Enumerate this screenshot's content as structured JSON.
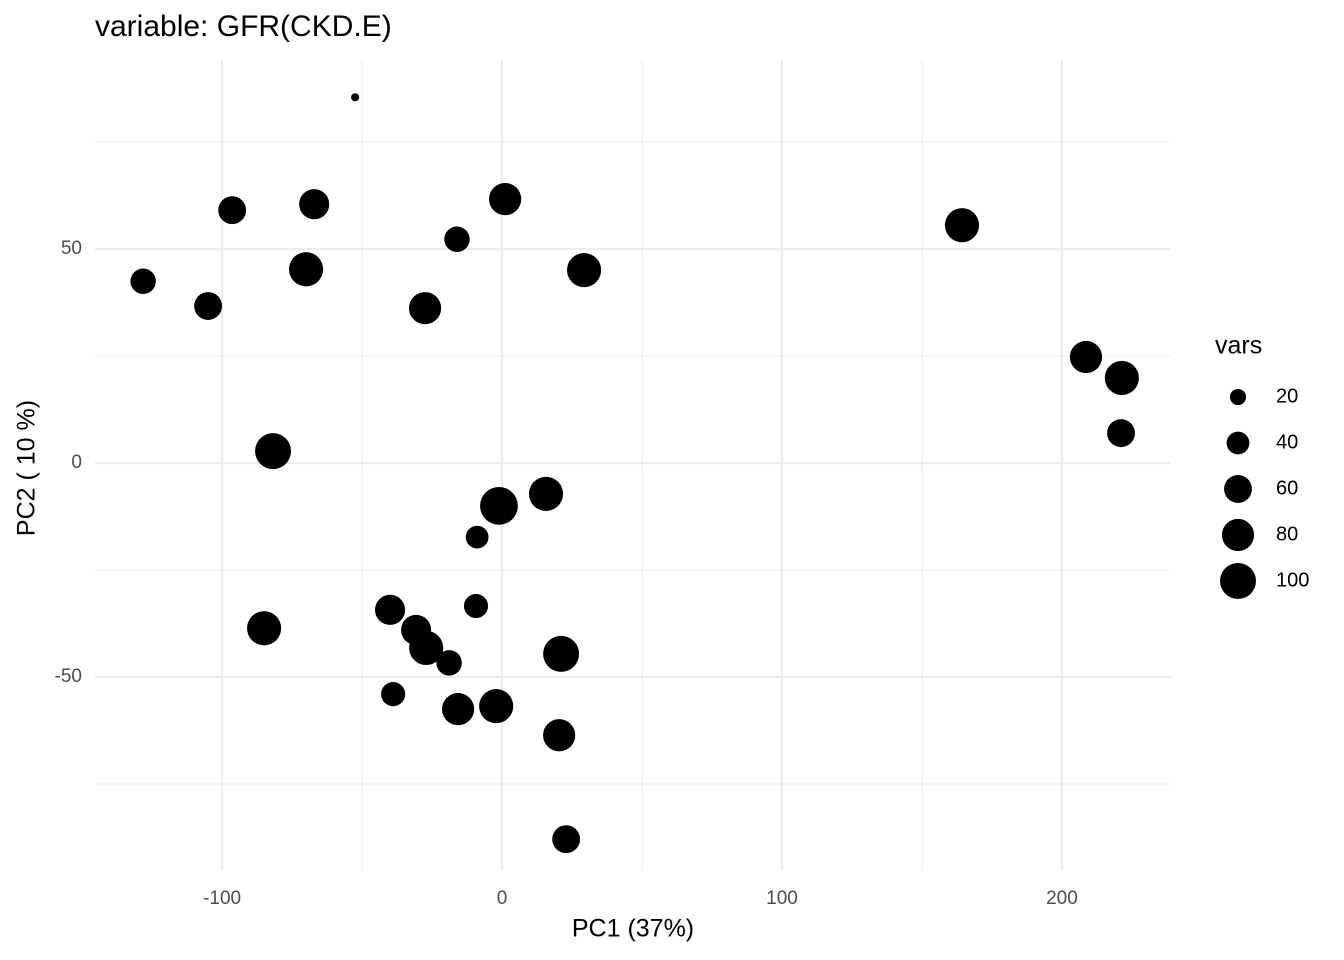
{
  "chart_data": {
    "type": "scatter",
    "title": "variable: GFR(CKD.E)",
    "x_label": "PC1 (37%)",
    "y_label": "PC2 ( 10 %)",
    "x": [
      -52.5,
      -128.2,
      -96.4,
      -67.1,
      -105,
      -70,
      -16.1,
      1.1,
      -27.5,
      29.3,
      164.3,
      208.6,
      221.4,
      221.1,
      -81.8,
      15.7,
      -1.1,
      -8.9,
      -9.3,
      -40,
      -85,
      -30.7,
      -27.1,
      -18.9,
      21.1,
      -38.9,
      -15.7,
      -2.1,
      20.4,
      22.9
    ],
    "values": [
      85.5,
      42.5,
      59.1,
      60.5,
      36.7,
      45.3,
      52.3,
      61.7,
      36.2,
      45.1,
      55.6,
      24.8,
      19.9,
      7.0,
      2.8,
      -7.2,
      -10.0,
      -17.3,
      -33.4,
      -34.3,
      -38.6,
      -39.0,
      -43.2,
      -46.7,
      -44.6,
      -54.0,
      -57.5,
      -56.8,
      -63.6,
      -87.9
    ],
    "sizes": [
      5,
      50,
      60,
      70,
      60,
      90,
      50,
      80,
      80,
      90,
      90,
      80,
      90,
      60,
      100,
      90,
      110,
      40,
      45,
      70,
      90,
      70,
      90,
      50,
      100,
      45,
      80,
      90,
      80,
      60
    ],
    "color": "#000000",
    "size_title": "vars",
    "size_legend": [
      20,
      40,
      60,
      80,
      100
    ],
    "xlim": [
      -145.4,
      238.6
    ],
    "ylim": [
      -95.1,
      94.2
    ],
    "xticks": [
      -100,
      0,
      100,
      200
    ],
    "yticks": [
      -50,
      0,
      50
    ],
    "x_minor_ticks": [
      -50,
      50,
      150
    ],
    "y_minor_ticks": [
      -75,
      -25,
      25,
      75
    ],
    "grid": true
  }
}
